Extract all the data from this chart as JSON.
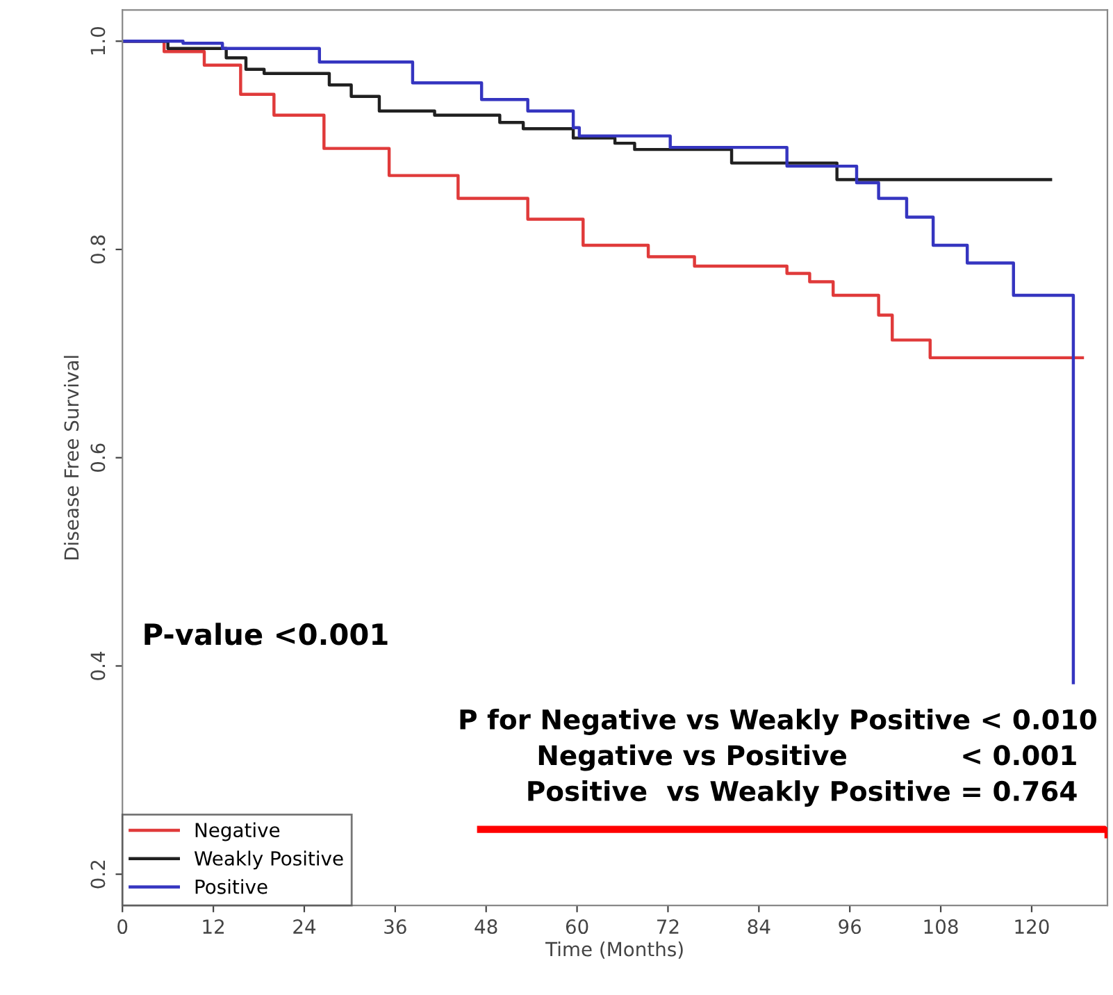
{
  "chart_data": {
    "type": "step",
    "xlabel": "Time (Months)",
    "ylabel": "Disease Free Survival",
    "xlim": [
      0,
      130
    ],
    "ylim": [
      0.17,
      1.03
    ],
    "xticks": [
      0,
      12,
      24,
      36,
      48,
      60,
      72,
      84,
      96,
      108,
      120
    ],
    "yticks": [
      {
        "value": 0.2,
        "label": "0.2"
      },
      {
        "value": 0.4,
        "label": "0.4"
      },
      {
        "value": 0.6,
        "label": "0.6"
      },
      {
        "value": 0.8,
        "label": "0.8"
      },
      {
        "value": 1.0,
        "label": "1.0"
      }
    ],
    "grid": false,
    "legend": "bottom left",
    "line_style": "solid",
    "marker": "none",
    "annotations": [
      "P-value <0.001",
      "P for Negative vs Weakly Positive < 0.010",
      "Negative vs Positive            < 0.001",
      "Positive  vs Weakly Positive = 0.764"
    ],
    "series": [
      {
        "name": "Negative",
        "color": "#e03a3a",
        "x": [
          0,
          5.5,
          10.8,
          15.6,
          20,
          26.6,
          35.2,
          44.3,
          53.5,
          60.8,
          69.4,
          75.5,
          87.7,
          90.7,
          93.8,
          99.8,
          101.6,
          106.6,
          126.7
        ],
        "values": [
          1.0,
          0.99,
          0.977,
          0.949,
          0.929,
          0.897,
          0.871,
          0.849,
          0.829,
          0.804,
          0.793,
          0.784,
          0.777,
          0.769,
          0.756,
          0.737,
          0.713,
          0.696,
          0.696
        ]
      },
      {
        "name": "Weakly Positive",
        "color": "#202020",
        "x": [
          0,
          6,
          13.7,
          16.3,
          18.7,
          27.3,
          30.2,
          33.9,
          41.2,
          49.8,
          52.9,
          59.5,
          65,
          67.6,
          80.4,
          94.3,
          122.5
        ],
        "values": [
          1.0,
          0.993,
          0.984,
          0.973,
          0.969,
          0.958,
          0.947,
          0.933,
          0.929,
          0.922,
          0.916,
          0.907,
          0.902,
          0.896,
          0.883,
          0.867,
          0.867
        ]
      },
      {
        "name": "Positive",
        "color": "#3535c0",
        "x": [
          0,
          8,
          13.2,
          26,
          38.3,
          47.4,
          53.5,
          59.5,
          60.3,
          72.3,
          87.7,
          96.9,
          99.8,
          103.5,
          107,
          111.5,
          117.6,
          125.5
        ],
        "values": [
          1.0,
          0.998,
          0.993,
          0.98,
          0.96,
          0.944,
          0.933,
          0.917,
          0.909,
          0.898,
          0.88,
          0.864,
          0.849,
          0.831,
          0.804,
          0.787,
          0.756,
          0.384
        ]
      }
    ]
  }
}
